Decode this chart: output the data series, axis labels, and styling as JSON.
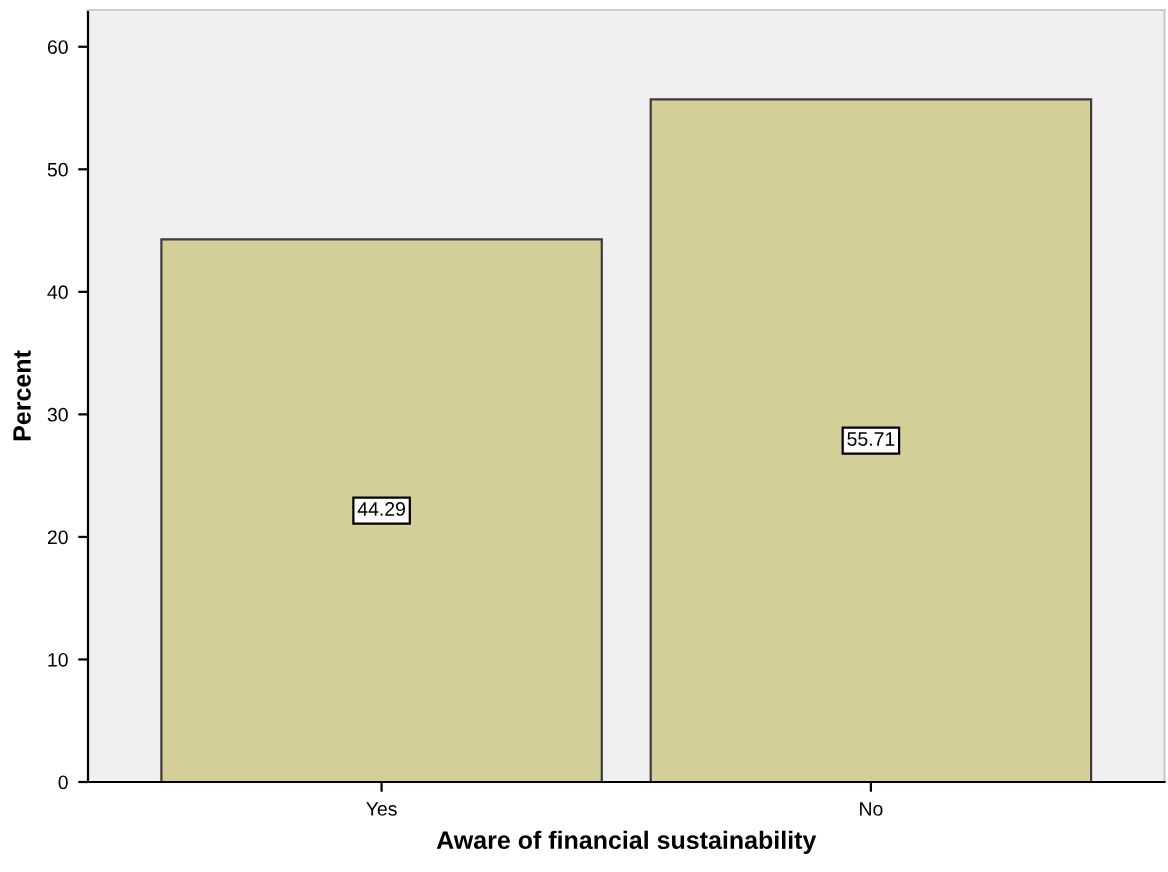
{
  "chart_data": {
    "type": "bar",
    "xlabel": "Aware of financial sustainability",
    "ylabel": "Percent",
    "categories": [
      "Yes",
      "No"
    ],
    "values": [
      44.29,
      55.71
    ],
    "color": "#d4cf98",
    "ylim": [
      0,
      63
    ],
    "yticks": [
      0,
      10,
      20,
      30,
      40,
      50,
      60
    ],
    "data_labels": true,
    "grid": false
  }
}
